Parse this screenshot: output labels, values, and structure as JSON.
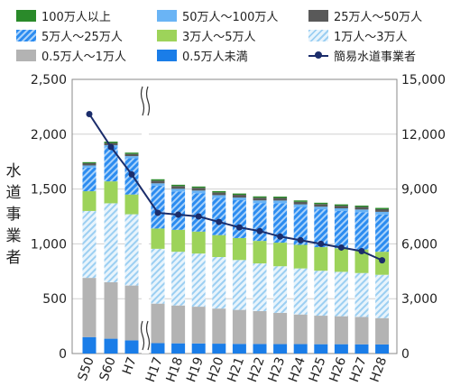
{
  "chart_data": {
    "type": "bar",
    "stacked": true,
    "categories": [
      "S50",
      "S60",
      "H7",
      "H17",
      "H18",
      "H19",
      "H20",
      "H21",
      "H22",
      "H23",
      "H24",
      "H25",
      "H26",
      "H27",
      "H28"
    ],
    "ylabel": "水道事業者",
    "ylim": [
      0,
      2500
    ],
    "y2lim": [
      0,
      15000
    ],
    "yticks": [
      "0",
      "500",
      "1,000",
      "1,500",
      "2,000",
      "2,500"
    ],
    "y2ticks": [
      "0",
      "3,000",
      "6,000",
      "9,000",
      "12,000",
      "15,000"
    ],
    "axis_break_after": "H7",
    "series": [
      {
        "name": "0.5万人未満",
        "color": "#1a7de8",
        "pattern": "solid",
        "values": [
          150,
          135,
          120,
          95,
          93,
          92,
          90,
          88,
          87,
          86,
          86,
          85,
          85,
          84,
          83
        ]
      },
      {
        "name": "0.5万人～1万人",
        "color": "#b3b3b3",
        "pattern": "solid",
        "values": [
          540,
          515,
          500,
          360,
          345,
          335,
          320,
          310,
          300,
          285,
          270,
          260,
          255,
          250,
          240
        ]
      },
      {
        "name": "1万人～3万人",
        "color": "#9ccff2",
        "pattern": "hatch",
        "values": [
          610,
          720,
          650,
          500,
          490,
          485,
          470,
          455,
          435,
          425,
          420,
          410,
          405,
          400,
          395
        ]
      },
      {
        "name": "3万人～5万人",
        "color": "#9dd35a",
        "pattern": "solid",
        "values": [
          180,
          200,
          180,
          185,
          200,
          200,
          200,
          200,
          205,
          215,
          215,
          215,
          215,
          215,
          210
        ]
      },
      {
        "name": "5万人～25万人",
        "color": "#2c8cf0",
        "pattern": "hatch",
        "values": [
          215,
          310,
          330,
          390,
          350,
          350,
          340,
          345,
          345,
          360,
          345,
          345,
          340,
          340,
          340
        ]
      },
      {
        "name": "50万人～100万人",
        "color": "#6ab4f5",
        "pattern": "solid",
        "values": [
          20,
          20,
          20,
          22,
          24,
          24,
          24,
          24,
          24,
          24,
          24,
          24,
          24,
          24,
          24
        ]
      },
      {
        "name": "25万人～50万人",
        "color": "#595959",
        "pattern": "solid",
        "values": [
          20,
          20,
          20,
          25,
          25,
          25,
          25,
          25,
          25,
          24,
          24,
          24,
          24,
          24,
          24
        ]
      },
      {
        "name": "100万人以上",
        "color": "#2a8a2a",
        "pattern": "solid",
        "values": [
          10,
          12,
          12,
          12,
          12,
          12,
          12,
          12,
          12,
          12,
          12,
          12,
          12,
          12,
          12
        ]
      }
    ],
    "line": {
      "name": "簡易水道事業者",
      "axis": "right",
      "color": "#1b2d6b",
      "values": [
        13100,
        11300,
        9800,
        7700,
        7600,
        7500,
        7200,
        6900,
        6700,
        6400,
        6200,
        6000,
        5800,
        5600,
        5100
      ]
    }
  },
  "legend": [
    {
      "label": "100万人以上",
      "color": "#2a8a2a",
      "pattern": "solid"
    },
    {
      "label": "50万人～100万人",
      "color": "#6ab4f5",
      "pattern": "solid"
    },
    {
      "label": "25万人～50万人",
      "color": "#595959",
      "pattern": "solid"
    },
    {
      "label": "5万人～25万人",
      "color": "#2c8cf0",
      "pattern": "hatch"
    },
    {
      "label": "3万人～5万人",
      "color": "#9dd35a",
      "pattern": "solid"
    },
    {
      "label": "1万人～3万人",
      "color": "#9ccff2",
      "pattern": "hatch"
    },
    {
      "label": "0.5万人～1万人",
      "color": "#b3b3b3",
      "pattern": "solid"
    },
    {
      "label": "0.5万人未満",
      "color": "#1a7de8",
      "pattern": "solid"
    },
    {
      "label": "簡易水道事業者",
      "color": "#1b2d6b",
      "pattern": "line"
    }
  ]
}
